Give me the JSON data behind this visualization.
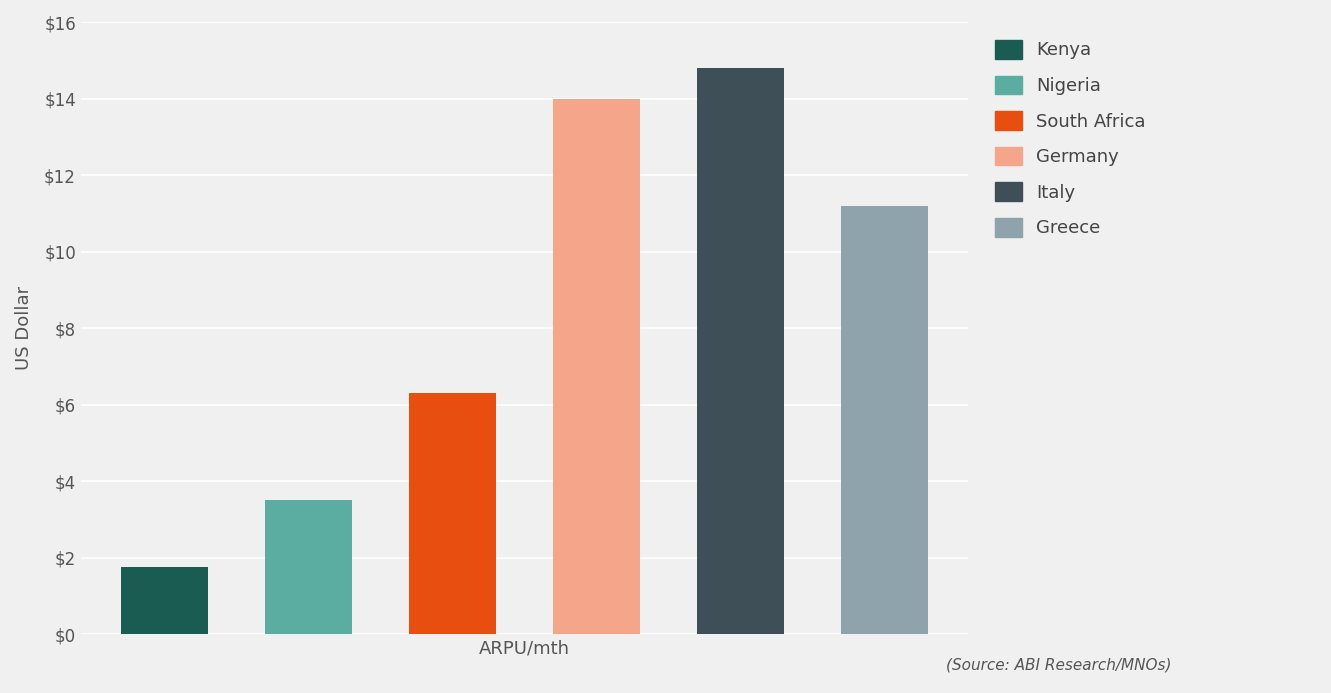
{
  "categories": [
    "Kenya",
    "Nigeria",
    "South Africa",
    "Germany",
    "Italy",
    "Greece"
  ],
  "values": [
    1.75,
    3.5,
    6.3,
    14.0,
    14.8,
    11.2
  ],
  "bar_colors": [
    "#1a5c52",
    "#5aada0",
    "#e84e0f",
    "#f4a58a",
    "#3e4f57",
    "#8fa3ad"
  ],
  "xlabel": "ARPU/mth",
  "ylabel": "US Dollar",
  "ylim": [
    0,
    16
  ],
  "yticks": [
    0,
    2,
    4,
    6,
    8,
    10,
    12,
    14,
    16
  ],
  "ytick_labels": [
    "$0",
    "$2",
    "$4",
    "$6",
    "$8",
    "$10",
    "$12",
    "$14",
    "$16"
  ],
  "background_color": "#f0f0f0",
  "plot_bg_color": "#f0f0f0",
  "source_text": "(Source: ABI Research/MNOs)",
  "legend_colors": [
    "#1a5c52",
    "#5aada0",
    "#e84e0f",
    "#f4a58a",
    "#3e4f57",
    "#8fa3ad"
  ],
  "legend_labels": [
    "Kenya",
    "Nigeria",
    "South Africa",
    "Germany",
    "Italy",
    "Greece"
  ],
  "grid_color": "#ffffff",
  "bar_width": 0.6
}
